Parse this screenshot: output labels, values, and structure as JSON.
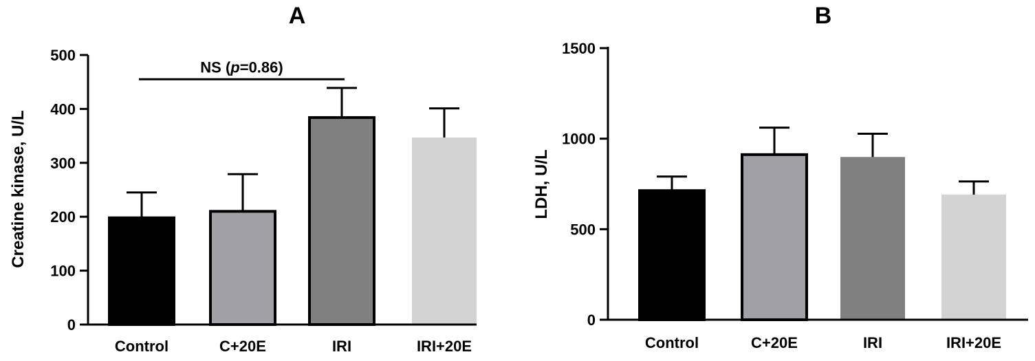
{
  "chart_data": [
    {
      "type": "bar",
      "title": "A",
      "ylabel": "Creatine kinase, U/L",
      "xlabel": "",
      "categories": [
        "Control",
        "C+20E",
        "IRI",
        "IRI+20E"
      ],
      "values": [
        198,
        210,
        384,
        347
      ],
      "error_upper": [
        245,
        279,
        439,
        401
      ],
      "ylim": [
        0,
        500
      ],
      "yticks": [
        0,
        100,
        200,
        300,
        400,
        500
      ],
      "colors": [
        "#000000",
        "#a1a1a5",
        "#808080",
        "#d3d3d3"
      ],
      "annotation": {
        "text_prefix": "NS (",
        "text_italic": "p",
        "text_suffix": "=0.86)",
        "from_category": "Control",
        "to_category": "IRI",
        "y": 455
      }
    },
    {
      "type": "bar",
      "title": "B",
      "ylabel": "LDH, U/L",
      "xlabel": "",
      "categories": [
        "Control",
        "C+20E",
        "IRI",
        "IRI+20E"
      ],
      "values": [
        713,
        912,
        899,
        691
      ],
      "error_upper": [
        791,
        1061,
        1027,
        764
      ],
      "ylim": [
        0,
        1500
      ],
      "yticks": [
        0,
        500,
        1000,
        1500
      ],
      "colors": [
        "#000000",
        "#a1a1a5",
        "#808080",
        "#d3d3d3"
      ]
    }
  ]
}
